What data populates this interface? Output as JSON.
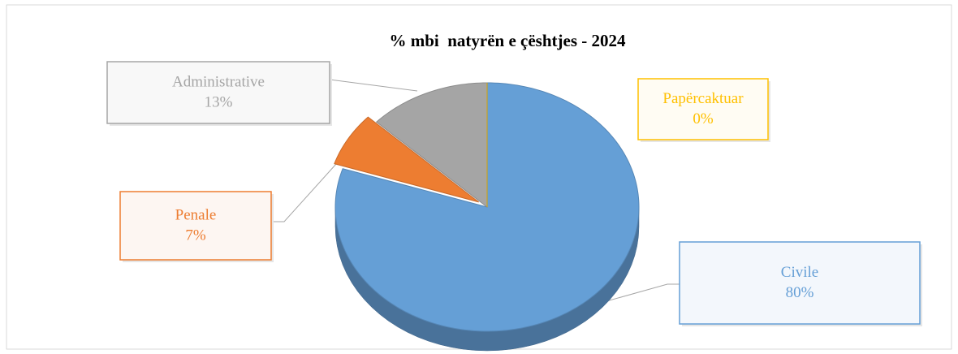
{
  "chart_data": {
    "type": "pie",
    "title": "% mbi  natyrën e çështjes - 2024",
    "categories": [
      "Civile",
      "Penale",
      "Administrative",
      "Papërcaktuar"
    ],
    "values": [
      80,
      7,
      13,
      0
    ],
    "value_labels": [
      "80%",
      "7%",
      "13%",
      "0%"
    ],
    "colors": [
      "#659fd6",
      "#ed7d31",
      "#a5a5a5",
      "#ffc000"
    ]
  }
}
